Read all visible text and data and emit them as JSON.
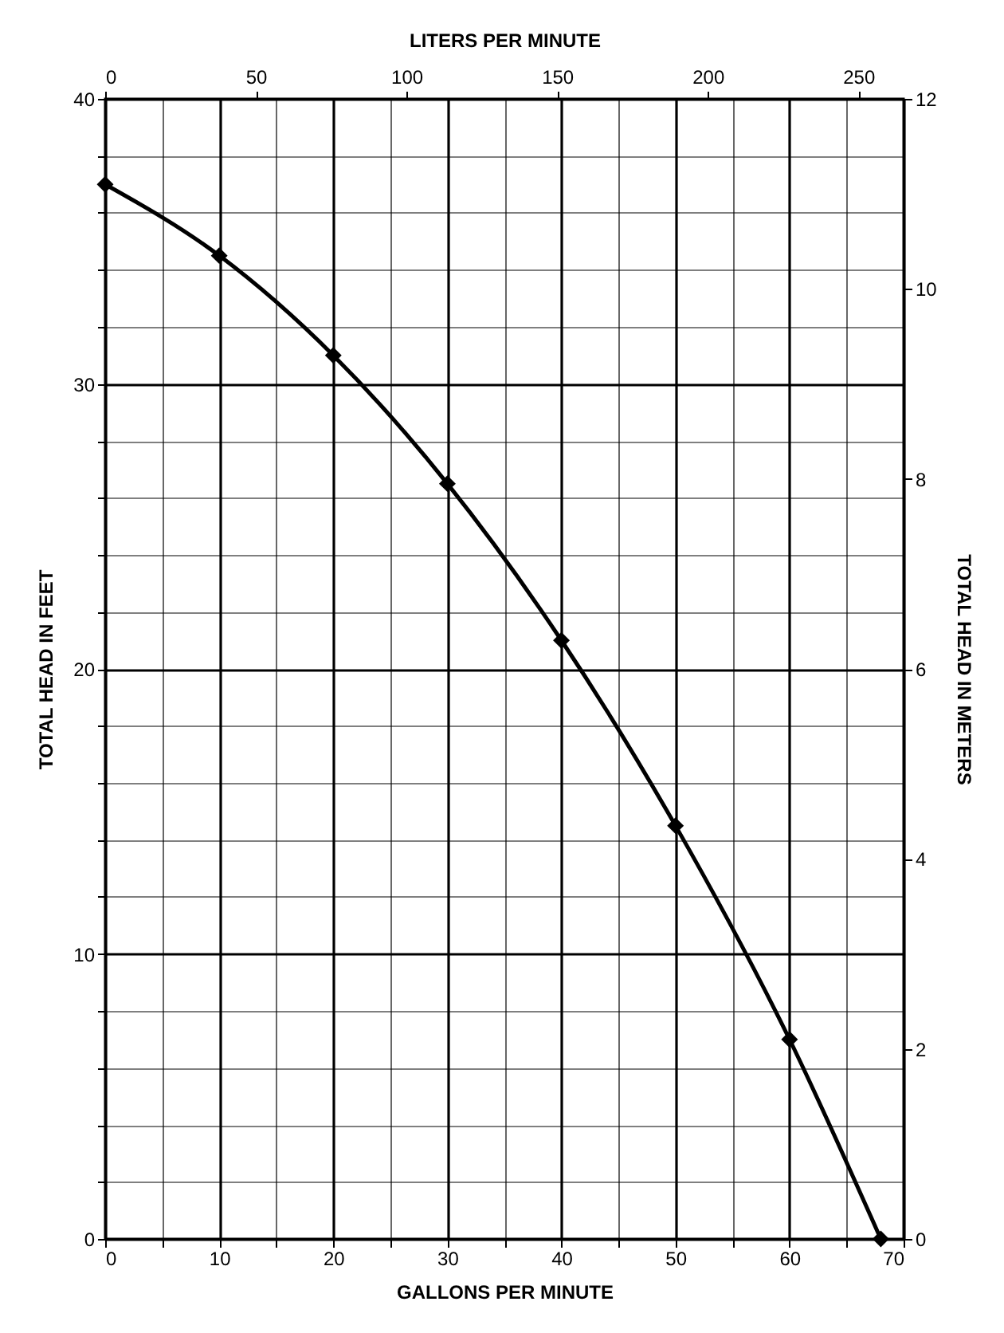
{
  "chart_data": {
    "type": "line",
    "xlabel": "GALLONS PER MINUTE",
    "ylabel": "TOTAL HEAD IN FEET",
    "x2label": "LITERS PER MINUTE",
    "y2label": "TOTAL HEAD IN METERS",
    "x": [
      0,
      10,
      20,
      30,
      40,
      50,
      60,
      68
    ],
    "series": [
      {
        "color": "#000000",
        "values": [
          37,
          34.5,
          31,
          26.5,
          21,
          14.5,
          7,
          0
        ]
      }
    ],
    "xlim": [
      0,
      70
    ],
    "xticks": [
      0,
      {
        "value": 5,
        "label": null
      },
      10,
      {
        "value": 15,
        "label": null
      },
      20,
      {
        "value": 25,
        "label": null
      },
      30,
      {
        "value": 35,
        "label": null
      },
      40,
      {
        "value": 45,
        "label": null
      },
      50,
      {
        "value": 55,
        "label": null
      },
      60,
      {
        "value": 65,
        "label": null
      },
      70
    ],
    "ylim": [
      0,
      40
    ],
    "yticks": [
      0,
      {
        "value": 2,
        "label": null
      },
      {
        "value": 4,
        "label": null
      },
      {
        "value": 6,
        "label": null
      },
      {
        "value": 8,
        "label": null
      },
      10,
      {
        "value": 12,
        "label": null
      },
      {
        "value": 14,
        "label": null
      },
      {
        "value": 16,
        "label": null
      },
      {
        "value": 18,
        "label": null
      },
      20,
      {
        "value": 22,
        "label": null
      },
      {
        "value": 24,
        "label": null
      },
      {
        "value": 26,
        "label": null
      },
      {
        "value": 28,
        "label": null
      },
      30,
      {
        "value": 32,
        "label": null
      },
      {
        "value": 34,
        "label": null
      },
      {
        "value": 36,
        "label": null
      },
      {
        "value": 38,
        "label": null
      },
      40
    ],
    "x2lim": [
      0,
      265
    ],
    "x2ticks": [
      0,
      50,
      100,
      150,
      200,
      250
    ],
    "y2lim": [
      0,
      12
    ],
    "y2ticks": [
      0,
      2,
      4,
      6,
      8,
      10,
      12
    ],
    "grid": true,
    "marker": "diamond",
    "line_style": "solid"
  }
}
